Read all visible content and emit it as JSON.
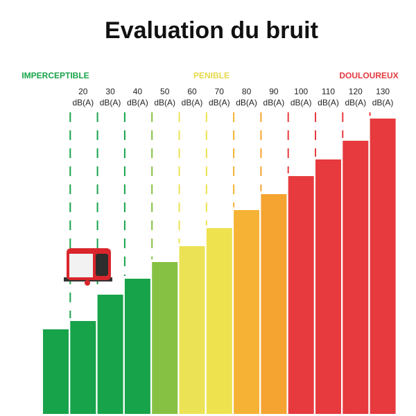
{
  "chart_data": {
    "type": "bar",
    "title": "Evaluation du bruit",
    "zones": [
      {
        "label": "IMPERCEPTIBLE",
        "color": "#17a34a"
      },
      {
        "label": "PENIBLE",
        "color": "#e6d94a"
      },
      {
        "label": "DOULOUREUX",
        "color": "#e43a3f"
      }
    ],
    "categories": [
      null,
      [
        "20",
        "dB(A)"
      ],
      [
        "30",
        "dB(A)"
      ],
      [
        "40",
        "dB(A)"
      ],
      [
        "50",
        "dB(A)"
      ],
      [
        "60",
        "dB(A)"
      ],
      [
        "70",
        "dB(A)"
      ],
      [
        "80",
        "dB(A)"
      ],
      [
        "90",
        "dB(A)"
      ],
      [
        "100",
        "dB(A)"
      ],
      [
        "110",
        "dB(A)"
      ],
      [
        "120",
        "dB(A)"
      ],
      [
        "130",
        "dB(A)"
      ]
    ],
    "values": [
      122,
      134,
      172,
      195,
      219,
      242,
      268,
      294,
      317,
      343,
      367,
      394,
      426
    ],
    "colors": [
      "#17a34a",
      "#17a34a",
      "#17a34a",
      "#17a34a",
      "#86c143",
      "#ebe355",
      "#eee24e",
      "#f5b234",
      "#f5a331",
      "#e63a3e",
      "#e63a3e",
      "#e63a3e",
      "#e63a3e"
    ]
  }
}
